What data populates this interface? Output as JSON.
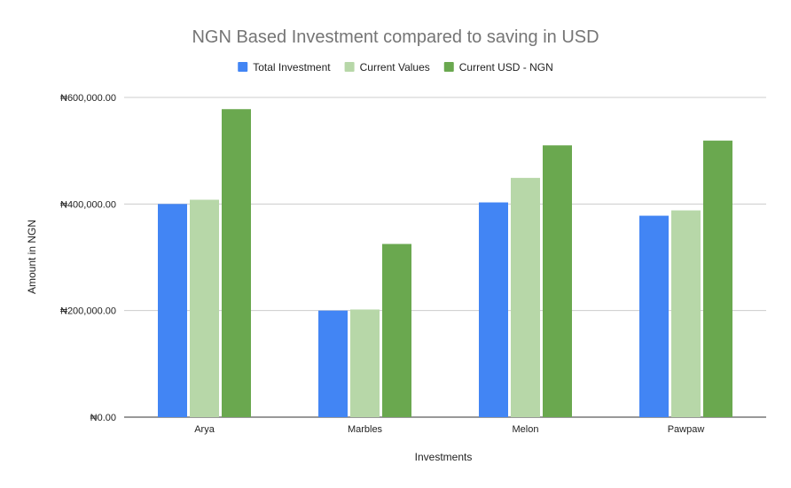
{
  "chart_data": {
    "type": "bar",
    "title": "NGN Based Investment compared to saving in USD",
    "xlabel": "Investments",
    "ylabel": "Amount in NGN",
    "categories": [
      "Arya",
      "Marbles",
      "Melon",
      "Pawpaw"
    ],
    "series": [
      {
        "name": "Total Investment",
        "color": "#4285f4",
        "values": [
          400000,
          200000,
          403000,
          378000
        ]
      },
      {
        "name": "Current Values",
        "color": "#b7d7a8",
        "values": [
          408000,
          202000,
          449000,
          388000
        ]
      },
      {
        "name": "Current USD - NGN",
        "color": "#6aa84f",
        "values": [
          578000,
          325000,
          510000,
          519000
        ]
      }
    ],
    "ylim": [
      0,
      600000
    ],
    "yticks": [
      0,
      200000,
      400000,
      600000
    ],
    "ytick_labels": [
      "₦0.00",
      "₦200,000.00",
      "₦400,000.00",
      "₦600,000.00"
    ],
    "grid": true,
    "legend_position": "top-center"
  }
}
